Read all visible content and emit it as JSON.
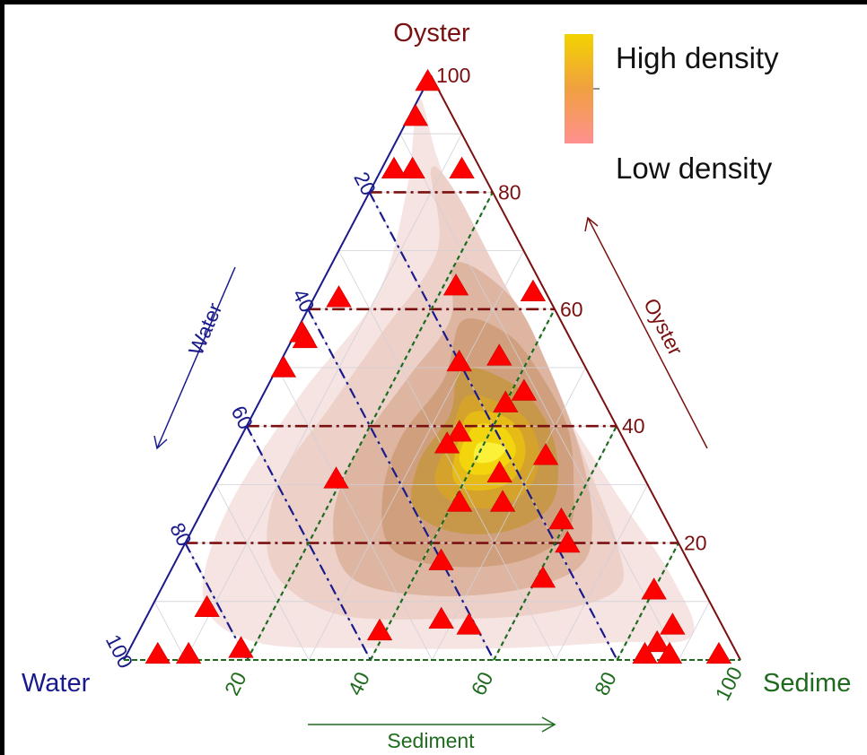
{
  "chart_data": {
    "type": "ternary_scatter_density",
    "vertices": {
      "top": "Oyster",
      "left": "Water",
      "right": "Sedime"
    },
    "axes": {
      "water": {
        "label": "Water",
        "ticks": [
          "20",
          "40",
          "60",
          "80",
          "100"
        ],
        "color": "#1a1a8c"
      },
      "oyster": {
        "label": "Oyster",
        "ticks": [
          "100",
          "80",
          "60",
          "40",
          "20"
        ],
        "color": "#7a1010"
      },
      "sediment": {
        "label": "Sediment",
        "ticks": [
          "20",
          "40",
          "60",
          "80",
          "100"
        ],
        "color": "#1e6b1e"
      }
    },
    "legend": {
      "high": "High density",
      "low": "Low density",
      "position": "top-right"
    },
    "density_colors": [
      "#f5e3e0",
      "#eccfc6",
      "#dcb39f",
      "#cf9f7c",
      "#c69848",
      "#d6a22a",
      "#e8bd14",
      "#f2d60c",
      "#fbf23c"
    ],
    "marker_color": "#ff0000",
    "reference_lines": {
      "oyster": [
        80,
        60,
        40,
        20
      ],
      "water": [
        20,
        40,
        60,
        80
      ],
      "sediment": [
        20,
        40,
        60,
        80
      ]
    },
    "points": [
      {
        "oyster": 99,
        "sediment": 0
      },
      {
        "oyster": 93,
        "sediment": 1
      },
      {
        "oyster": 84,
        "sediment": 5
      },
      {
        "oyster": 84,
        "sediment": 2
      },
      {
        "oyster": 84,
        "sediment": 13
      },
      {
        "oyster": 64,
        "sediment": 22
      },
      {
        "oyster": 63,
        "sediment": 35
      },
      {
        "oyster": 62,
        "sediment": 4
      },
      {
        "oyster": 56,
        "sediment": 1
      },
      {
        "oyster": 55,
        "sediment": 2
      },
      {
        "oyster": 52,
        "sediment": 35
      },
      {
        "oyster": 51,
        "sediment": 29
      },
      {
        "oyster": 50,
        "sediment": 1
      },
      {
        "oyster": 46,
        "sediment": 42
      },
      {
        "oyster": 44,
        "sediment": 40
      },
      {
        "oyster": 39,
        "sediment": 35
      },
      {
        "oyster": 37,
        "sediment": 34
      },
      {
        "oyster": 35,
        "sediment": 51
      },
      {
        "oyster": 32,
        "sediment": 45
      },
      {
        "oyster": 31,
        "sediment": 19
      },
      {
        "oyster": 27,
        "sediment": 48
      },
      {
        "oyster": 27,
        "sediment": 41
      },
      {
        "oyster": 24,
        "sediment": 59
      },
      {
        "oyster": 20,
        "sediment": 62
      },
      {
        "oyster": 17,
        "sediment": 43
      },
      {
        "oyster": 14,
        "sediment": 61
      },
      {
        "oyster": 12,
        "sediment": 80
      },
      {
        "oyster": 9,
        "sediment": 9
      },
      {
        "oyster": 7,
        "sediment": 48
      },
      {
        "oyster": 6,
        "sediment": 53
      },
      {
        "oyster": 6,
        "sediment": 86
      },
      {
        "oyster": 5,
        "sediment": 39
      },
      {
        "oyster": 3,
        "sediment": 85
      },
      {
        "oyster": 2,
        "sediment": 18
      },
      {
        "oyster": 1,
        "sediment": 5
      },
      {
        "oyster": 1,
        "sediment": 10
      },
      {
        "oyster": 1,
        "sediment": 84
      },
      {
        "oyster": 1,
        "sediment": 88
      },
      {
        "oyster": 1,
        "sediment": 96
      }
    ]
  }
}
